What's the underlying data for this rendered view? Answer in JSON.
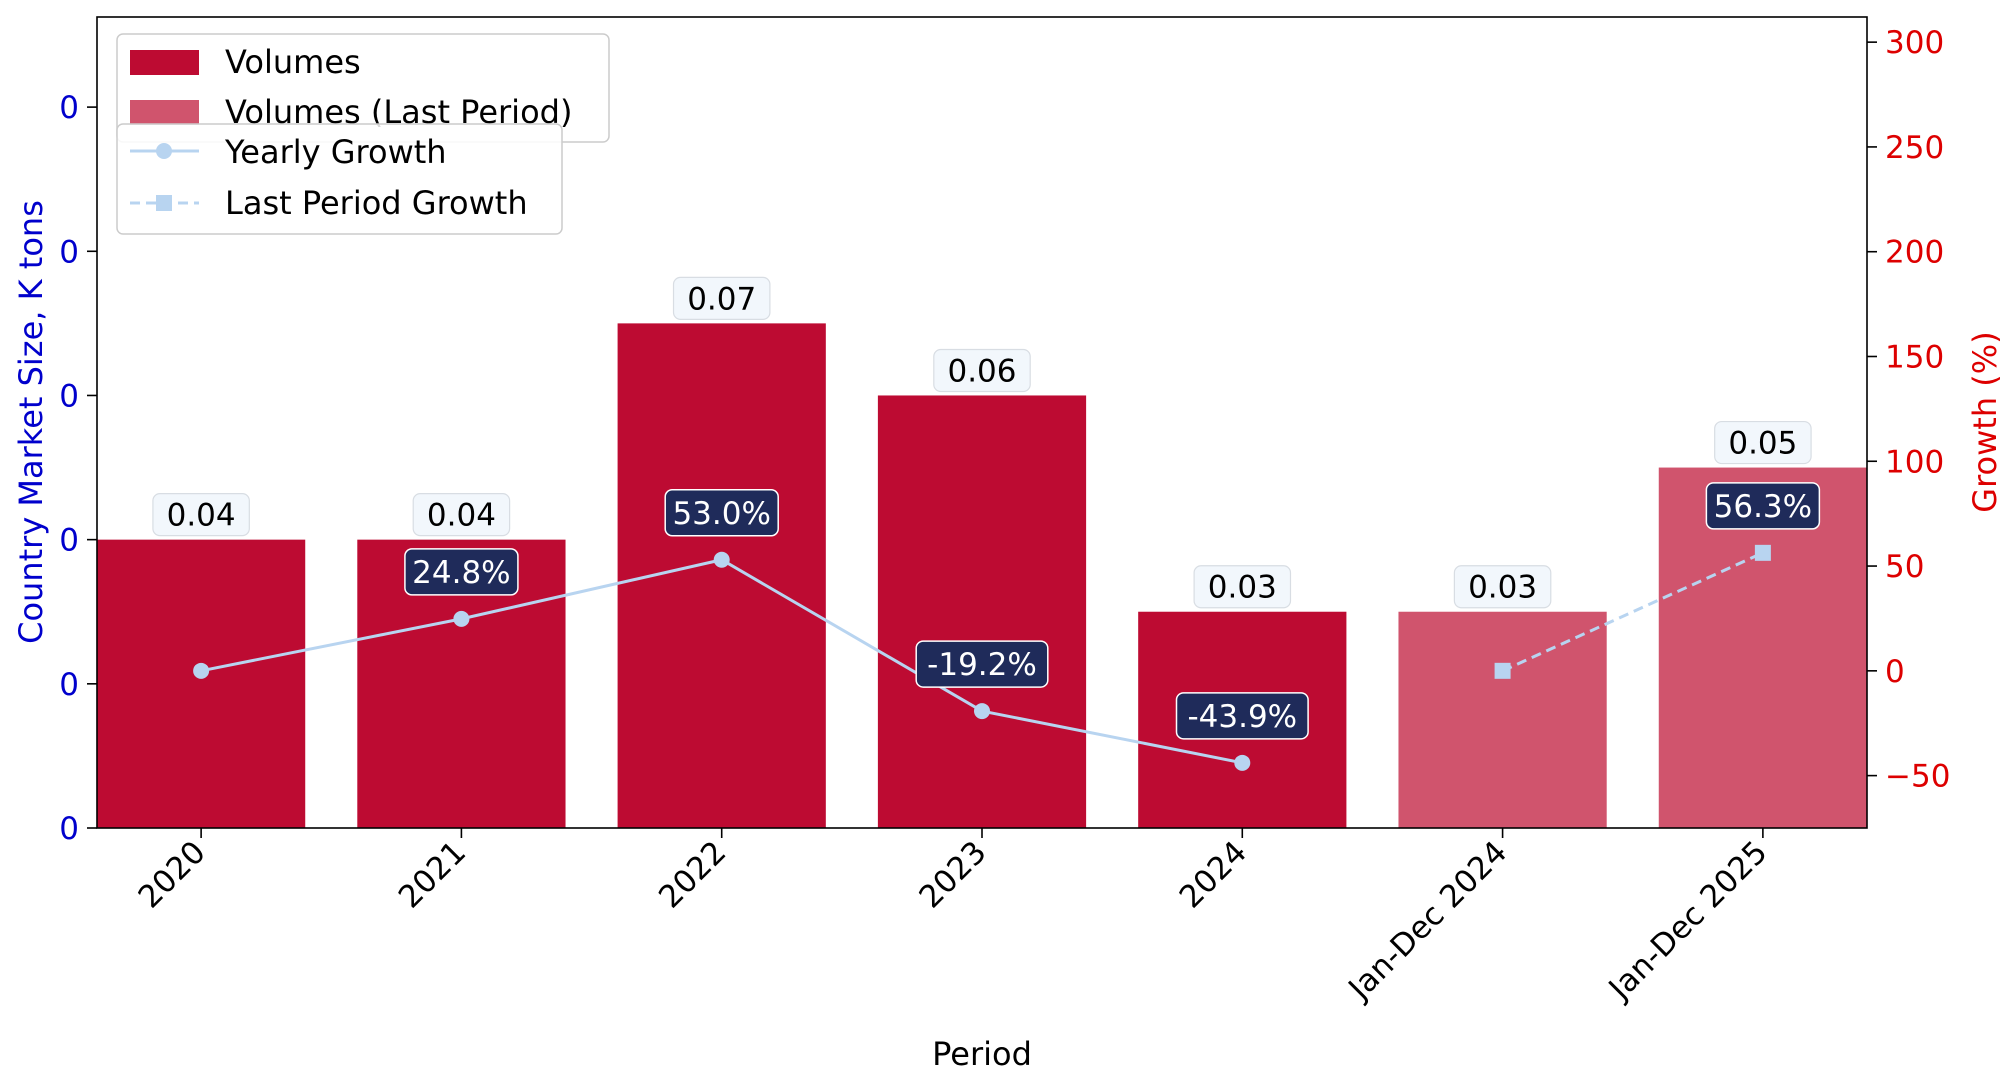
{
  "chart_data": {
    "type": "bar",
    "xlabel": "Period",
    "ylabel_left": "Country Market Size, K tons",
    "ylabel_right": "Growth (%)",
    "categories": [
      "2020",
      "2021",
      "2022",
      "2023",
      "2024",
      "Jan-Dec 2024",
      "Jan-Dec 2025"
    ],
    "volumes": [
      0.04,
      0.04,
      0.07,
      0.06,
      0.03,
      0.03,
      0.05
    ],
    "volume_labels": [
      "0.04",
      "0.04",
      "0.07",
      "0.06",
      "0.03",
      "0.03",
      "0.05"
    ],
    "bar_kind": [
      "volumes",
      "volumes",
      "volumes",
      "volumes",
      "volumes",
      "last",
      "last"
    ],
    "yearly_growth": {
      "name": "Yearly Growth",
      "categories": [
        "2020",
        "2021",
        "2022",
        "2023",
        "2024"
      ],
      "values": [
        0,
        24.8,
        53.0,
        -19.2,
        -43.9
      ],
      "labels": [
        "",
        "24.8%",
        "53.0%",
        "-19.2%",
        "-43.9%"
      ]
    },
    "last_period_growth": {
      "name": "Last Period Growth",
      "categories": [
        "Jan-Dec 2024",
        "Jan-Dec 2025"
      ],
      "values": [
        0,
        56.3
      ],
      "labels": [
        "",
        "56.3%"
      ]
    },
    "left_axis": {
      "ylim": [
        0,
        0.1125
      ],
      "tick_values": [
        0,
        0.02,
        0.04,
        0.06,
        0.08,
        0.1
      ],
      "tick_labels": [
        "0",
        "0",
        "0",
        "0",
        "0",
        "0"
      ]
    },
    "right_axis": {
      "ylim": [
        -75,
        312
      ],
      "tick_values": [
        -50,
        0,
        50,
        100,
        150,
        200,
        250,
        300
      ],
      "tick_labels": [
        "−50",
        "0",
        "50",
        "100",
        "150",
        "200",
        "250",
        "300"
      ]
    },
    "legend": {
      "placement": "top-left",
      "bars": [
        "Volumes",
        "Volumes (Last Period)"
      ],
      "lines": [
        "Yearly Growth",
        "Last Period Growth"
      ]
    },
    "colors": {
      "volumes": "#bd0b32",
      "volumes_last": "#d0546d",
      "growth_line": "#b8d4f0",
      "growth_label_bg": "#1f2b5a",
      "bar_label_bg": "#f2f7fc",
      "left_axis": "#0000cc",
      "right_axis": "#dd0000"
    },
    "grid": false
  }
}
